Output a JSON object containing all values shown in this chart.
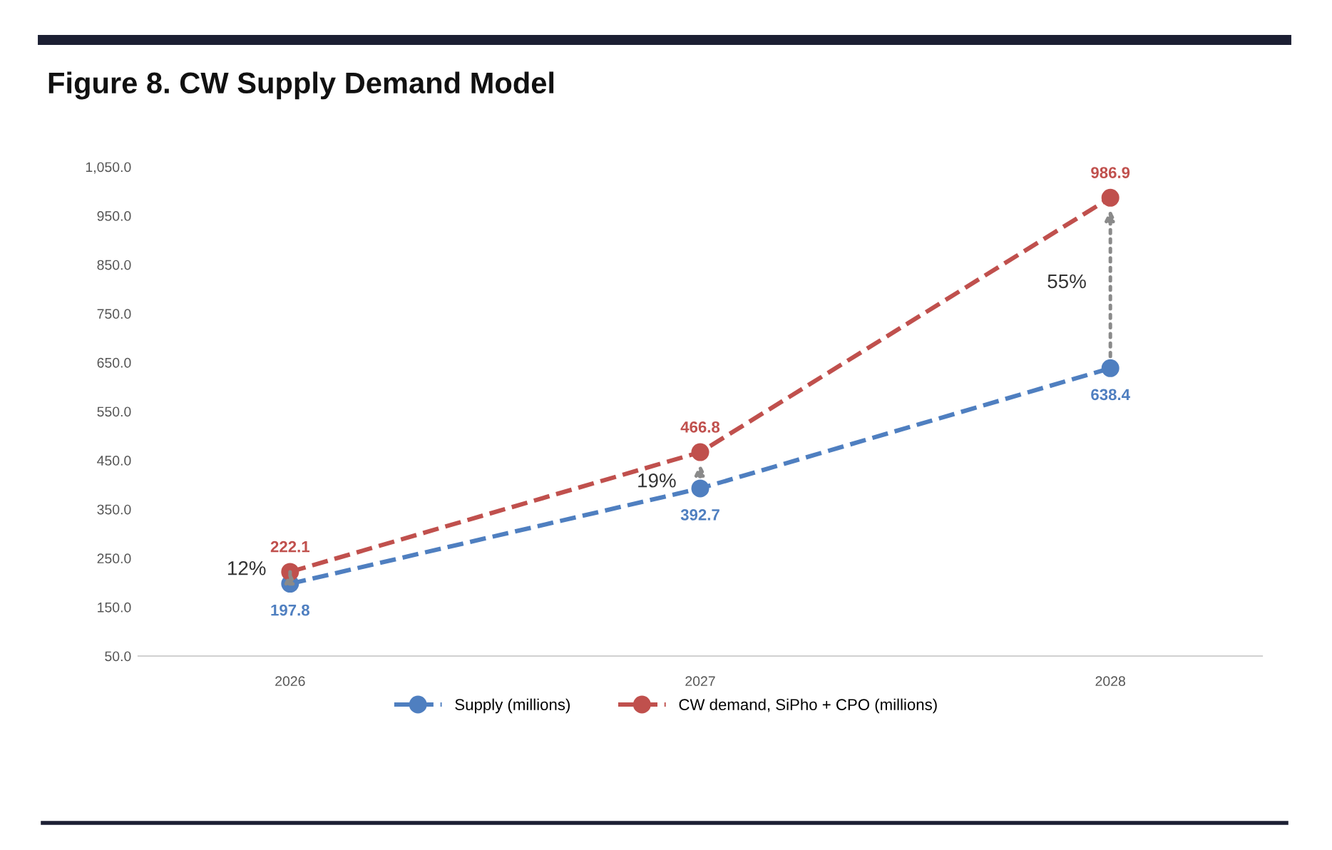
{
  "chart_data": {
    "type": "line",
    "title": "Figure 8. CW Supply Demand Model",
    "categories": [
      "2026",
      "2027",
      "2028"
    ],
    "series": [
      {
        "name": "Supply (millions)",
        "color": "#4f7fc0",
        "values": [
          197.8,
          392.7,
          638.4
        ]
      },
      {
        "name": "CW demand, SiPho + CPO (millions)",
        "color": "#c0504d",
        "values": [
          222.1,
          466.8,
          986.9
        ]
      }
    ],
    "ylim": [
      50,
      1050
    ],
    "yticks": [
      {
        "value": 50,
        "label": "50.0"
      },
      {
        "value": 150,
        "label": "150.0"
      },
      {
        "value": 250,
        "label": "250.0"
      },
      {
        "value": 350,
        "label": "350.0"
      },
      {
        "value": 450,
        "label": "450.0"
      },
      {
        "value": 550,
        "label": "550.0"
      },
      {
        "value": 650,
        "label": "650.0"
      },
      {
        "value": 750,
        "label": "750.0"
      },
      {
        "value": 850,
        "label": "850.0"
      },
      {
        "value": 950,
        "label": "950.0"
      },
      {
        "value": 1050,
        "label": "1,050.0"
      }
    ],
    "annotations": [
      "12%",
      "19%",
      "55%"
    ],
    "data_labels": true,
    "marker": "circle",
    "line_style": "dashed",
    "grid": false,
    "legend": "bottom"
  }
}
